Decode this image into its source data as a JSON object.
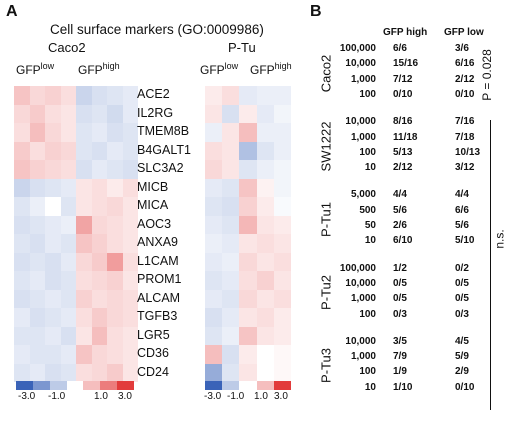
{
  "panel_a": {
    "label": "A",
    "title": "Cell surface markers (GO:0009986)",
    "caco2_label": "Caco2",
    "ptu_label": "P-Tu",
    "gfp_low_base": "GFP",
    "gfp_low_sup": "low",
    "gfp_high_base": "GFP",
    "gfp_high_sup": "high",
    "genes": [
      "ACE2",
      "IL2RG",
      "TMEM8B",
      "B4GALT1",
      "SLC3A2",
      "MICB",
      "MICA",
      "AOC3",
      "ANXA9",
      "L1CAM",
      "PROM1",
      "ALCAM",
      "TGFB3",
      "LGR5",
      "CD36",
      "CD24"
    ],
    "colorbar_ticks": [
      "-3.0",
      "-1.0",
      "1.0",
      "3.0"
    ],
    "ptu_colorbar_ticks": [
      "-3.0",
      "-1.0",
      "1.0",
      "3.0"
    ],
    "colors": {
      "negative": "#3a63b8",
      "positive": "#e23b3b",
      "neutral": "#ffffff"
    }
  },
  "chart_data": {
    "type": "heatmap",
    "title": "Cell surface markers (GO:0009986)",
    "rows": [
      "ACE2",
      "IL2RG",
      "TMEM8B",
      "B4GALT1",
      "SLC3A2",
      "MICB",
      "MICA",
      "AOC3",
      "ANXA9",
      "L1CAM",
      "PROM1",
      "ALCAM",
      "TGFB3",
      "LGR5",
      "CD36",
      "CD24"
    ],
    "color_range": [
      -3.0,
      3.0
    ],
    "caco2": {
      "columns": [
        "GFP low",
        "GFP low",
        "GFP low",
        "GFP low",
        "GFP high",
        "GFP high",
        "GFP high",
        "GFP high"
      ],
      "values": [
        [
          0.9,
          0.6,
          0.7,
          0.5,
          -0.8,
          -0.6,
          -0.5,
          -0.4
        ],
        [
          0.6,
          0.8,
          0.5,
          0.4,
          -0.6,
          -0.5,
          -0.7,
          -0.4
        ],
        [
          0.5,
          1.0,
          0.6,
          0.4,
          -0.5,
          -0.4,
          -0.6,
          -0.5
        ],
        [
          0.8,
          0.5,
          0.7,
          0.6,
          -0.5,
          -0.6,
          -0.4,
          -0.5
        ],
        [
          0.9,
          0.7,
          0.6,
          0.5,
          -0.6,
          -0.4,
          -0.5,
          -0.6
        ],
        [
          -0.8,
          -0.6,
          -0.5,
          -0.4,
          0.4,
          0.5,
          0.3,
          0.5
        ],
        [
          -0.5,
          -0.3,
          0.0,
          -0.5,
          0.4,
          0.5,
          0.6,
          0.4
        ],
        [
          -0.6,
          -0.5,
          -0.4,
          -0.3,
          1.4,
          0.6,
          0.5,
          0.4
        ],
        [
          -0.5,
          -0.6,
          -0.4,
          -0.5,
          0.9,
          0.7,
          0.5,
          0.4
        ],
        [
          -0.6,
          -0.5,
          -0.6,
          -0.4,
          0.6,
          0.8,
          1.5,
          0.5
        ],
        [
          -0.5,
          -0.4,
          -0.6,
          -0.5,
          0.5,
          0.6,
          0.7,
          0.4
        ],
        [
          -0.6,
          -0.5,
          -0.4,
          -0.5,
          0.7,
          0.5,
          0.6,
          0.5
        ],
        [
          -0.4,
          -0.6,
          -0.5,
          -0.4,
          0.5,
          0.8,
          0.6,
          0.5
        ],
        [
          -0.5,
          -0.5,
          -0.4,
          -0.6,
          0.4,
          1.0,
          0.5,
          0.4
        ],
        [
          -0.4,
          -0.5,
          -0.5,
          -0.4,
          0.9,
          0.6,
          0.5,
          0.4
        ],
        [
          -0.5,
          -0.4,
          -0.6,
          -0.5,
          0.5,
          0.6,
          0.8,
          0.4
        ]
      ]
    },
    "ptu": {
      "columns": [
        "GFP low",
        "GFP low",
        "GFP high",
        "GFP high",
        "GFP high"
      ],
      "values": [
        [
          0.3,
          0.5,
          -0.4,
          -0.3,
          -0.3
        ],
        [
          0.4,
          -0.6,
          0.3,
          -0.4,
          -0.2
        ],
        [
          -0.3,
          0.4,
          1.0,
          -0.3,
          -0.3
        ],
        [
          0.5,
          0.4,
          -1.2,
          -0.5,
          -0.3
        ],
        [
          0.6,
          0.4,
          -0.5,
          -0.3,
          -0.2
        ],
        [
          -0.4,
          -0.5,
          0.9,
          0.2,
          -0.2
        ],
        [
          -0.5,
          -0.6,
          0.7,
          0.3,
          -0.1
        ],
        [
          -0.4,
          -0.5,
          1.1,
          0.4,
          0.3
        ],
        [
          -0.3,
          -0.4,
          0.4,
          0.5,
          0.4
        ],
        [
          -0.4,
          -0.3,
          0.6,
          0.4,
          0.5
        ],
        [
          -0.5,
          -0.4,
          0.5,
          0.7,
          0.4
        ],
        [
          -0.4,
          -0.5,
          0.6,
          0.4,
          0.5
        ],
        [
          -0.6,
          -0.4,
          0.4,
          0.5,
          0.3
        ],
        [
          -0.5,
          -0.3,
          0.9,
          0.4,
          0.3
        ],
        [
          1.0,
          -0.6,
          0.3,
          0.0,
          0.1
        ],
        [
          -1.6,
          -0.5,
          0.4,
          0.0,
          0.1
        ]
      ]
    }
  },
  "panel_b": {
    "label": "B",
    "header_high": "GFP high",
    "header_low": "GFP low",
    "p_value": "P = 0.028",
    "ns_label": "n.s.",
    "groups": [
      {
        "name": "Caco2",
        "rows": [
          {
            "dose": "100,000",
            "high": "6/6",
            "low": "3/6"
          },
          {
            "dose": "10,000",
            "high": "15/16",
            "low": "6/16"
          },
          {
            "dose": "1,000",
            "high": "7/12",
            "low": "2/12"
          },
          {
            "dose": "100",
            "high": "0/10",
            "low": "0/10"
          }
        ]
      },
      {
        "name": "SW1222",
        "rows": [
          {
            "dose": "10,000",
            "high": "8/16",
            "low": "7/16"
          },
          {
            "dose": "1,000",
            "high": "11/18",
            "low": "7/18"
          },
          {
            "dose": "100",
            "high": "5/13",
            "low": "10/13"
          },
          {
            "dose": "10",
            "high": "2/12",
            "low": "3/12"
          }
        ]
      },
      {
        "name": "P-Tu1",
        "rows": [
          {
            "dose": "5,000",
            "high": "4/4",
            "low": "4/4"
          },
          {
            "dose": "500",
            "high": "5/6",
            "low": "6/6"
          },
          {
            "dose": "50",
            "high": "2/6",
            "low": "5/6"
          },
          {
            "dose": "10",
            "high": "6/10",
            "low": "5/10"
          }
        ]
      },
      {
        "name": "P-Tu2",
        "rows": [
          {
            "dose": "100,000",
            "high": "1/2",
            "low": "0/2"
          },
          {
            "dose": "10,000",
            "high": "0/5",
            "low": "0/5"
          },
          {
            "dose": "1,000",
            "high": "0/5",
            "low": "0/5"
          },
          {
            "dose": "100",
            "high": "0/3",
            "low": "0/3"
          }
        ]
      },
      {
        "name": "P-Tu3",
        "rows": [
          {
            "dose": "10,000",
            "high": "3/5",
            "low": "4/5"
          },
          {
            "dose": "1,000",
            "high": "7/9",
            "low": "5/9"
          },
          {
            "dose": "100",
            "high": "1/9",
            "low": "2/9"
          },
          {
            "dose": "10",
            "high": "1/10",
            "low": "0/10"
          }
        ]
      }
    ]
  }
}
